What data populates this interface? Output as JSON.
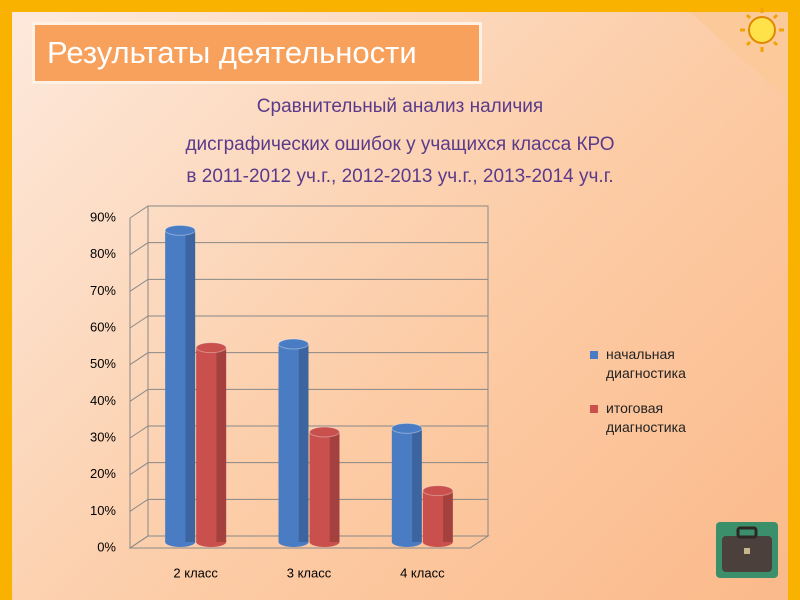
{
  "chart_data": {
    "type": "bar3d",
    "title": "Результаты деятельности",
    "subtitle": [
      "Сравнительный  анализ наличия",
      "дисграфических  ошибок у учащихся  класса  КРО",
      "в  2011-2012 уч.г., 2012-2013 уч.г., 2013-2014 уч.г."
    ],
    "categories": [
      "2 класс",
      "3 класс",
      "4 класс"
    ],
    "series": [
      {
        "name": "начальная диагностика",
        "color": "#4a7cc4",
        "values": [
          85,
          54,
          31
        ]
      },
      {
        "name": "итоговая диагностика",
        "color": "#c9504c",
        "values": [
          53,
          30,
          14
        ]
      }
    ],
    "ylim": [
      0,
      90
    ],
    "yticks": [
      {
        "value": 0,
        "label": "0%"
      },
      {
        "value": 10,
        "label": "10%"
      },
      {
        "value": 20,
        "label": "20%"
      },
      {
        "value": 30,
        "label": "30%"
      },
      {
        "value": 40,
        "label": "40%"
      },
      {
        "value": 50,
        "label": "50%"
      },
      {
        "value": 60,
        "label": "60%"
      },
      {
        "value": 70,
        "label": "70%"
      },
      {
        "value": 80,
        "label": "80%"
      },
      {
        "value": 90,
        "label": "90%"
      }
    ],
    "grid": true,
    "legend": "right"
  }
}
